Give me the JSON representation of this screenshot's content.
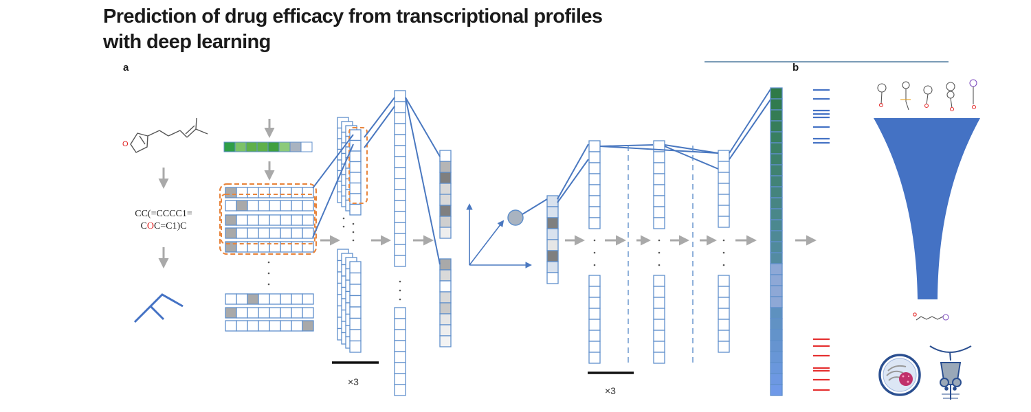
{
  "title": "Prediction of drug efficacy from transcriptional profiles with deep learning",
  "panels": {
    "a": "a",
    "b": "b"
  },
  "smiles": {
    "line1": "CC(=CCCC1=",
    "line2_pre": "C",
    "line2_hl": "O",
    "line2_post": "C=C1)C"
  },
  "atom_label": "O",
  "pooling": {
    "left": "×3",
    "right": "×3"
  },
  "colors": {
    "accent_blue": "#5f8fcb",
    "fill_blue": "#4472c4",
    "orange_dashed": "#e8853d",
    "arrow_gray": "#a9a9a9",
    "red_bars": "#e53030",
    "green_cells": "#5fb04b",
    "title_rule": "#2b5f8a"
  }
}
